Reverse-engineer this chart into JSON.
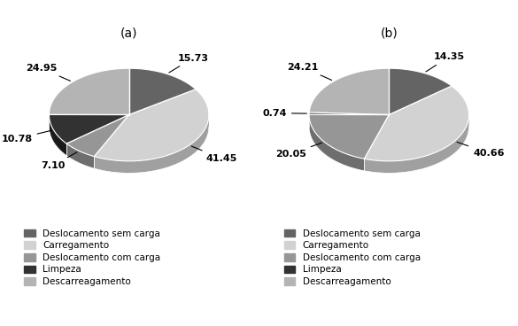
{
  "chart_a": {
    "title": "(a)",
    "values": [
      15.73,
      41.45,
      7.1,
      10.78,
      24.95
    ],
    "labels": [
      "15.73",
      "41.45",
      "7.10",
      "10.78",
      "24.95"
    ],
    "colors_top": [
      "#646464",
      "#d2d2d2",
      "#969696",
      "#323232",
      "#b4b4b4"
    ],
    "colors_side": [
      "#484848",
      "#a0a0a0",
      "#6e6e6e",
      "#1a1a1a",
      "#8c8c8c"
    ],
    "legend": [
      "Deslocamento sem carga",
      "Carregamento",
      "Deslocamento com carga",
      "Limpeza",
      "Descarreagamento"
    ]
  },
  "chart_b": {
    "title": "(b)",
    "values": [
      14.35,
      40.66,
      20.05,
      0.74,
      24.21
    ],
    "labels": [
      "14.35",
      "40.66",
      "20.05",
      "0.74",
      "24.21"
    ],
    "colors_top": [
      "#646464",
      "#d2d2d2",
      "#969696",
      "#323232",
      "#b4b4b4"
    ],
    "colors_side": [
      "#484848",
      "#a0a0a0",
      "#6e6e6e",
      "#1a1a1a",
      "#8c8c8c"
    ],
    "legend": [
      "Deslocamento sem carga",
      "Carregamento",
      "Deslocamento com carga",
      "Limpeza",
      "Descarreagamento"
    ]
  },
  "bg_color": "#ffffff",
  "label_fontsize": 8,
  "title_fontsize": 10,
  "legend_fontsize": 7.5
}
